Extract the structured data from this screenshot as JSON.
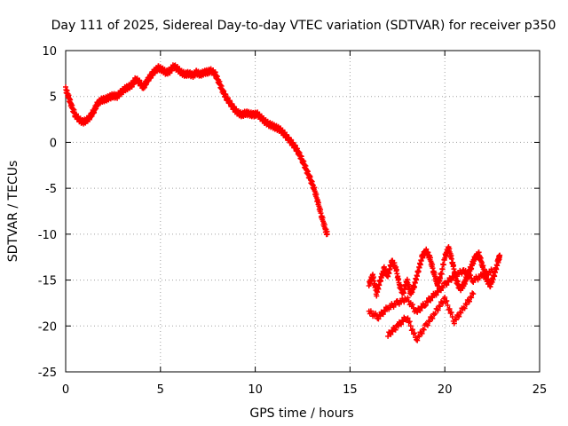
{
  "chart_data": {
    "type": "scatter",
    "title": "Day 111 of 2025, Sidereal Day-to-day VTEC variation (SDTVAR) for receiver p350",
    "xlabel": "GPS time / hours",
    "ylabel": "SDTVAR / TECUs",
    "xlim": [
      0,
      25
    ],
    "ylim": [
      -25,
      10
    ],
    "xticks": [
      "0",
      "5",
      "10",
      "15",
      "20",
      "25"
    ],
    "yticks": [
      "10",
      "5",
      "0",
      "-5",
      "-10",
      "-15",
      "-20",
      "-25"
    ],
    "grid": true,
    "marker_color": "#ff0000",
    "series": [
      {
        "points": [
          [
            0.0,
            5.8
          ],
          [
            0.15,
            5.0
          ],
          [
            0.3,
            4.0
          ],
          [
            0.5,
            3.0
          ],
          [
            0.7,
            2.5
          ],
          [
            0.9,
            2.2
          ],
          [
            1.1,
            2.4
          ],
          [
            1.3,
            2.8
          ],
          [
            1.5,
            3.5
          ],
          [
            1.7,
            4.3
          ],
          [
            1.9,
            4.6
          ],
          [
            2.1,
            4.7
          ],
          [
            2.3,
            4.9
          ],
          [
            2.5,
            5.1
          ],
          [
            2.7,
            5.0
          ],
          [
            2.9,
            5.4
          ],
          [
            3.1,
            5.8
          ],
          [
            3.3,
            6.0
          ],
          [
            3.5,
            6.3
          ],
          [
            3.7,
            6.9
          ],
          [
            3.9,
            6.5
          ],
          [
            4.1,
            6.0
          ],
          [
            4.3,
            6.7
          ],
          [
            4.5,
            7.3
          ],
          [
            4.7,
            7.8
          ],
          [
            4.9,
            8.1
          ],
          [
            5.1,
            7.9
          ],
          [
            5.3,
            7.6
          ],
          [
            5.5,
            7.8
          ],
          [
            5.7,
            8.3
          ],
          [
            5.9,
            8.0
          ],
          [
            6.1,
            7.6
          ],
          [
            6.3,
            7.4
          ],
          [
            6.5,
            7.5
          ],
          [
            6.7,
            7.3
          ],
          [
            6.9,
            7.6
          ],
          [
            7.1,
            7.4
          ],
          [
            7.3,
            7.6
          ],
          [
            7.5,
            7.7
          ],
          [
            7.7,
            7.8
          ],
          [
            7.9,
            7.4
          ],
          [
            8.1,
            6.5
          ],
          [
            8.3,
            5.5
          ],
          [
            8.5,
            4.8
          ],
          [
            8.7,
            4.2
          ],
          [
            8.9,
            3.6
          ],
          [
            9.1,
            3.2
          ],
          [
            9.3,
            3.0
          ],
          [
            9.5,
            3.2
          ],
          [
            9.7,
            3.1
          ],
          [
            9.9,
            3.0
          ],
          [
            10.1,
            3.1
          ],
          [
            10.3,
            2.7
          ],
          [
            10.5,
            2.3
          ],
          [
            10.7,
            2.0
          ],
          [
            10.9,
            1.8
          ],
          [
            11.1,
            1.6
          ],
          [
            11.3,
            1.4
          ],
          [
            11.5,
            1.0
          ],
          [
            11.7,
            0.5
          ],
          [
            11.9,
            0.0
          ],
          [
            12.1,
            -0.5
          ],
          [
            12.3,
            -1.2
          ],
          [
            12.5,
            -2.0
          ],
          [
            12.7,
            -3.0
          ],
          [
            12.9,
            -4.0
          ],
          [
            13.1,
            -5.0
          ],
          [
            13.3,
            -6.5
          ],
          [
            13.5,
            -8.0
          ],
          [
            13.7,
            -9.5
          ],
          [
            13.8,
            -10.0
          ],
          [
            16.0,
            -15.5
          ],
          [
            16.2,
            -14.5
          ],
          [
            16.4,
            -16.5
          ],
          [
            16.6,
            -15.0
          ],
          [
            16.8,
            -13.8
          ],
          [
            17.0,
            -14.5
          ],
          [
            17.2,
            -13.0
          ],
          [
            17.4,
            -13.5
          ],
          [
            17.6,
            -15.5
          ],
          [
            17.8,
            -16.5
          ],
          [
            18.0,
            -15.0
          ],
          [
            18.2,
            -16.5
          ],
          [
            18.4,
            -15.5
          ],
          [
            18.6,
            -14.0
          ],
          [
            18.8,
            -12.5
          ],
          [
            19.0,
            -11.8
          ],
          [
            19.2,
            -12.5
          ],
          [
            19.4,
            -14.0
          ],
          [
            19.6,
            -15.5
          ],
          [
            19.8,
            -14.5
          ],
          [
            20.0,
            -12.5
          ],
          [
            20.2,
            -11.5
          ],
          [
            20.4,
            -13.0
          ],
          [
            20.6,
            -15.0
          ],
          [
            20.8,
            -16.0
          ],
          [
            21.0,
            -15.5
          ],
          [
            21.2,
            -14.5
          ],
          [
            21.4,
            -13.5
          ],
          [
            21.6,
            -12.5
          ],
          [
            21.8,
            -12.2
          ],
          [
            22.0,
            -13.5
          ],
          [
            22.2,
            -15.0
          ],
          [
            22.4,
            -15.5
          ],
          [
            22.6,
            -14.5
          ],
          [
            22.8,
            -13.0
          ],
          [
            22.9,
            -12.3
          ],
          [
            16.0,
            -18.5
          ],
          [
            16.5,
            -19.0
          ],
          [
            17.0,
            -18.0
          ],
          [
            17.5,
            -17.5
          ],
          [
            18.0,
            -17.0
          ],
          [
            18.5,
            -18.5
          ],
          [
            19.0,
            -17.5
          ],
          [
            19.5,
            -16.5
          ],
          [
            20.0,
            -15.5
          ],
          [
            20.5,
            -14.5
          ],
          [
            21.0,
            -14.0
          ],
          [
            21.5,
            -15.0
          ],
          [
            22.0,
            -14.5
          ],
          [
            22.5,
            -14.0
          ],
          [
            17.0,
            -21.0
          ],
          [
            17.5,
            -20.0
          ],
          [
            18.0,
            -19.0
          ],
          [
            18.5,
            -21.5
          ],
          [
            19.0,
            -20.0
          ],
          [
            19.5,
            -18.5
          ],
          [
            20.0,
            -17.0
          ],
          [
            20.5,
            -19.5
          ],
          [
            21.0,
            -18.0
          ],
          [
            21.5,
            -16.5
          ]
        ]
      }
    ]
  }
}
